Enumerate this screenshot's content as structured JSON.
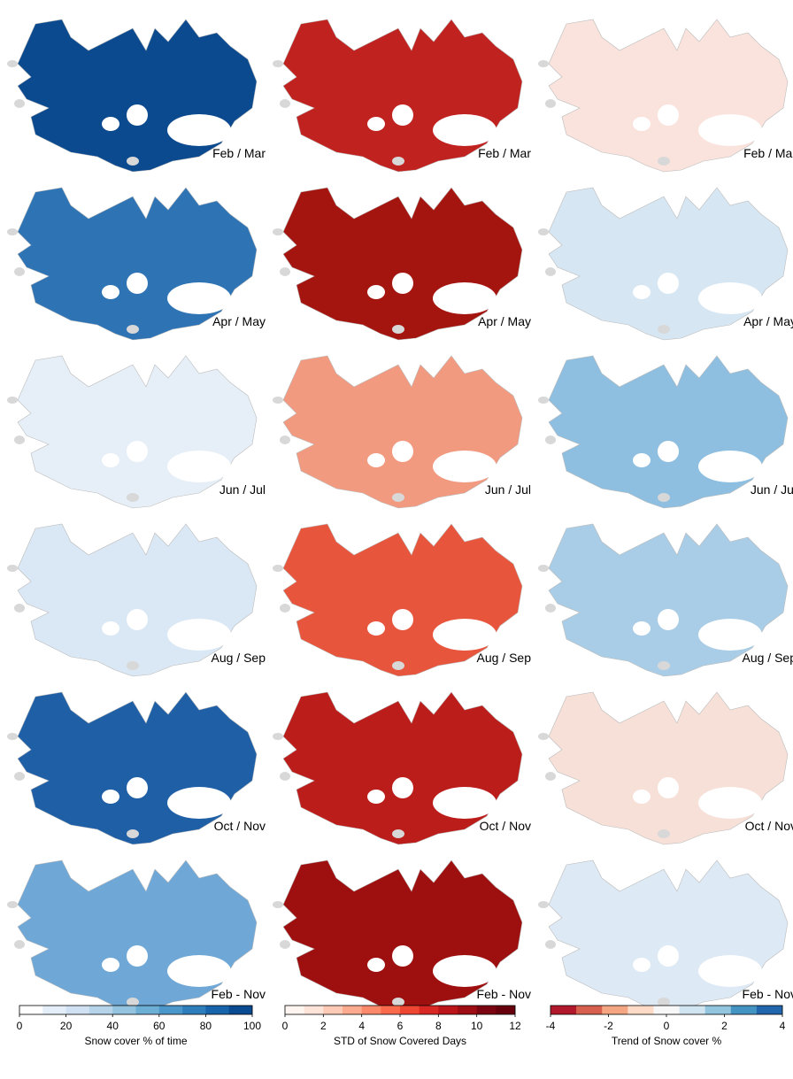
{
  "maps": [
    {
      "label": "Feb / Mar",
      "colors": [
        "#0c4a8f",
        "#c0221f",
        "#f9e3dc"
      ]
    },
    {
      "label": "Apr / May",
      "colors": [
        "#2e74b5",
        "#a5150f",
        "#d7e6f3"
      ]
    },
    {
      "label": "Jun / Jul",
      "colors": [
        "#e6eff8",
        "#f29a80",
        "#8ebfe0"
      ]
    },
    {
      "label": "Aug / Sep",
      "colors": [
        "#dae7f4",
        "#e8553d",
        "#a9cde6"
      ]
    },
    {
      "label": "Oct / Nov",
      "colors": [
        "#1f5fa6",
        "#bb1d1a",
        "#f6e0d8"
      ]
    },
    {
      "label": "Feb - Nov",
      "colors": [
        "#6fa7d6",
        "#9e0f0f",
        "#dde9f4"
      ]
    }
  ],
  "colorbars": [
    {
      "label": "Snow cover % of time",
      "lim": [
        0,
        100
      ],
      "ticks": [
        0,
        20,
        40,
        60,
        80,
        100
      ],
      "colors": [
        "#ffffff",
        "#e3eef8",
        "#cfe1f2",
        "#b5d4e9",
        "#93c3df",
        "#6daed5",
        "#4b97c9",
        "#2f7ebc",
        "#1864aa",
        "#0a4a90"
      ]
    },
    {
      "label": "STD of Snow Covered Days",
      "lim": [
        0,
        12
      ],
      "ticks": [
        0,
        2,
        4,
        6,
        8,
        10,
        12
      ],
      "colors": [
        "#fff5f0",
        "#fee4d8",
        "#fdcab5",
        "#fcab8f",
        "#fc8a6a",
        "#f9694c",
        "#ef4533",
        "#d92723",
        "#bb151a",
        "#9e0d14",
        "#7a0510",
        "#67000d"
      ]
    },
    {
      "label": "Trend of Snow cover %",
      "lim": [
        -4,
        4
      ],
      "ticks": [
        -4,
        -2,
        0,
        2,
        4
      ],
      "colors": [
        "#b2182b",
        "#d6604d",
        "#f4a582",
        "#fddbc7",
        "#f7f7f7",
        "#d1e5f0",
        "#92c5de",
        "#4393c3",
        "#2166ac"
      ]
    }
  ]
}
